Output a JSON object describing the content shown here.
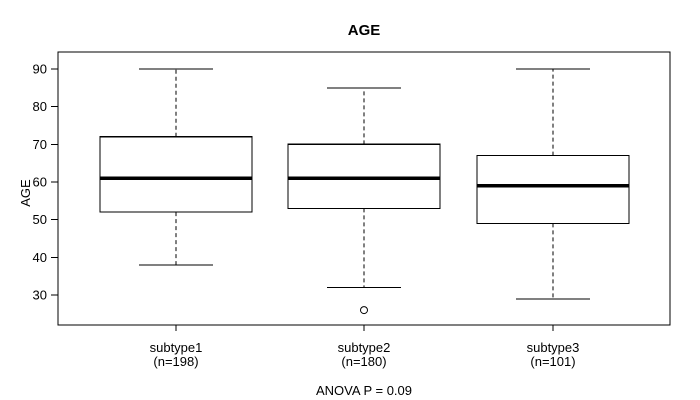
{
  "chart_data": {
    "type": "boxplot",
    "title": "AGE",
    "xlabel": "",
    "ylabel": "AGE",
    "annotation": "ANOVA P = 0.09",
    "yticks": [
      30,
      40,
      50,
      60,
      70,
      80,
      90
    ],
    "ylim": [
      22,
      95
    ],
    "grid": false,
    "legend": "none",
    "line_color": "#000000",
    "box_fill": "#ffffff",
    "categories": [
      "subtype1",
      "subtype2",
      "subtype3"
    ],
    "groups": [
      {
        "label": "subtype1",
        "count_label": "(n=198)",
        "n": 198,
        "whisker_low": 38,
        "q1": 52,
        "median": 61,
        "q3": 72,
        "whisker_high": 90,
        "outliers": []
      },
      {
        "label": "subtype2",
        "count_label": "(n=180)",
        "n": 180,
        "whisker_low": 32,
        "q1": 53,
        "median": 61,
        "q3": 70,
        "whisker_high": 85,
        "outliers": [
          26
        ]
      },
      {
        "label": "subtype3",
        "count_label": "(n=101)",
        "n": 101,
        "whisker_low": 29,
        "q1": 49,
        "median": 59,
        "q3": 67,
        "whisker_high": 90,
        "outliers": []
      }
    ]
  }
}
